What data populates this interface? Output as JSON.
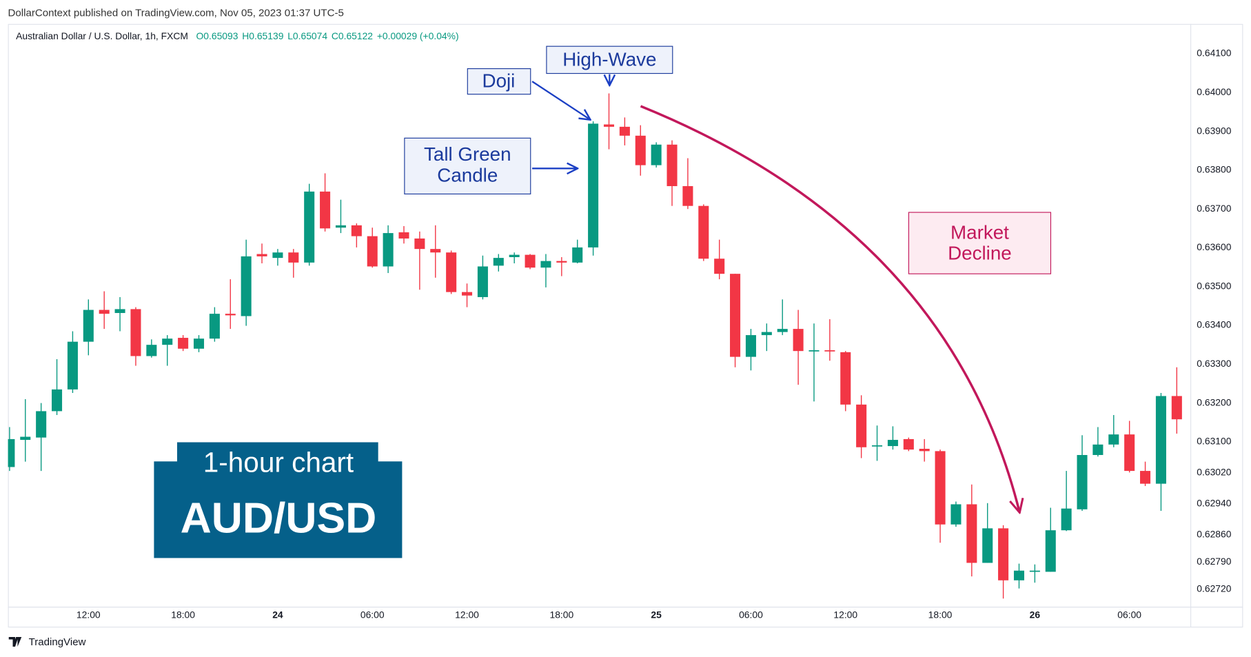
{
  "header": {
    "publisher": "DollarContext published on TradingView.com, Nov 05, 2023 01:37 UTC-5"
  },
  "footer": {
    "brand": "TradingView"
  },
  "chart_data": {
    "type": "candlestick",
    "title": "Australian Dollar / U.S. Dollar, 1h, FXCM",
    "quote": [
      "O0.65093",
      "H0.65139",
      "L0.65074",
      "C0.65122",
      "+0.00029 (+0.04%)"
    ],
    "categories": [
      null,
      null,
      null,
      null,
      null,
      "12:00",
      null,
      null,
      null,
      null,
      null,
      "18:00",
      null,
      null,
      null,
      null,
      null,
      "24",
      null,
      null,
      null,
      null,
      null,
      "06:00",
      null,
      null,
      null,
      null,
      null,
      "12:00",
      null,
      null,
      null,
      null,
      null,
      "18:00",
      null,
      null,
      null,
      null,
      null,
      "25",
      null,
      null,
      null,
      null,
      null,
      "06:00",
      null,
      null,
      null,
      null,
      null,
      "12:00",
      null,
      null,
      null,
      null,
      null,
      "18:00",
      null,
      null,
      null,
      null,
      null,
      "26",
      null,
      null,
      null,
      null,
      null,
      "06:00",
      null,
      null,
      null
    ],
    "open": [
      0.63035,
      0.63105,
      0.63111,
      0.63179,
      0.63235,
      0.63358,
      0.6344,
      0.63432,
      0.63442,
      0.63321,
      0.6335,
      0.63368,
      0.6334,
      0.63366,
      0.6343,
      0.63424,
      0.63584,
      0.63574,
      0.63588,
      0.63562,
      0.63745,
      0.63652,
      0.63658,
      0.6363,
      0.63552,
      0.6364,
      0.63624,
      0.63597,
      0.63588,
      0.63486,
      0.63473,
      0.63554,
      0.63576,
      0.63582,
      0.63549,
      0.63566,
      0.63562,
      0.63601,
      0.63918,
      0.63912,
      0.63889,
      0.63813,
      0.63866,
      0.63759,
      0.63708,
      0.63572,
      0.63533,
      0.63319,
      0.63375,
      0.63383,
      0.63391,
      0.63334,
      0.63336,
      0.63331,
      0.63196,
      0.63089,
      0.63089,
      0.63107,
      0.63082,
      0.63076,
      0.62887,
      0.62939,
      0.62788,
      0.62877,
      0.62743,
      0.62765,
      0.62765,
      0.62872,
      0.62926,
      0.63066,
      0.63093,
      0.63119,
      0.63025,
      0.62992,
      0.63218
    ],
    "high": [
      0.63138,
      0.6321,
      0.632,
      0.63313,
      0.63385,
      0.63467,
      0.63488,
      0.63473,
      0.63447,
      0.63364,
      0.63375,
      0.63375,
      0.63375,
      0.63447,
      0.63519,
      0.63621,
      0.63611,
      0.63597,
      0.63597,
      0.63765,
      0.63792,
      0.63724,
      0.63663,
      0.63652,
      0.63658,
      0.63656,
      0.63642,
      0.63658,
      0.63593,
      0.63508,
      0.6358,
      0.63584,
      0.63588,
      0.63584,
      0.63584,
      0.63576,
      0.63621,
      0.63926,
      0.63998,
      0.63936,
      0.63916,
      0.63872,
      0.63877,
      0.63831,
      0.63712,
      0.63621,
      0.63533,
      0.63391,
      0.63405,
      0.63467,
      0.6344,
      0.63405,
      0.63416,
      0.63334,
      0.6322,
      0.63142,
      0.6314,
      0.63111,
      0.63107,
      0.6308,
      0.62946,
      0.6299,
      0.62942,
      0.62885,
      0.62786,
      0.62784,
      0.6293,
      0.63025,
      0.63117,
      0.63138,
      0.63169,
      0.63154,
      0.63049,
      0.63226,
      0.63292
    ],
    "low": [
      0.63025,
      0.63049,
      0.63025,
      0.63169,
      0.63226,
      0.63323,
      0.63391,
      0.63385,
      0.63296,
      0.63317,
      0.63296,
      0.63334,
      0.63331,
      0.63358,
      0.63391,
      0.63399,
      0.6356,
      0.63554,
      0.63523,
      0.63554,
      0.63642,
      0.63638,
      0.63601,
      0.63549,
      0.63535,
      0.63611,
      0.63492,
      0.63523,
      0.63481,
      0.63447,
      0.63467,
      0.63539,
      0.6356,
      0.63545,
      0.63498,
      0.63527,
      0.6356,
      0.6358,
      0.63854,
      0.63864,
      0.63786,
      0.63807,
      0.63708,
      0.637,
      0.63566,
      0.63519,
      0.63292,
      0.63284,
      0.63334,
      0.63375,
      0.63247,
      0.63204,
      0.63309,
      0.63179,
      0.63058,
      0.63051,
      0.6308,
      0.63076,
      0.63049,
      0.6284,
      0.62881,
      0.62753,
      0.62788,
      0.62696,
      0.62722,
      0.62737,
      0.62765,
      0.6287,
      0.62922,
      0.63062,
      0.63086,
      0.63021,
      0.62986,
      0.62922,
      0.63121
    ],
    "close": [
      0.63107,
      0.63113,
      0.63179,
      0.63235,
      0.63358,
      0.6344,
      0.6343,
      0.63442,
      0.63321,
      0.6335,
      0.63366,
      0.6334,
      0.63366,
      0.6343,
      0.63426,
      0.63578,
      0.63578,
      0.63588,
      0.63562,
      0.63745,
      0.6365,
      0.63658,
      0.6363,
      0.63552,
      0.63638,
      0.63624,
      0.63597,
      0.63588,
      0.63486,
      0.63477,
      0.63552,
      0.63574,
      0.63582,
      0.63549,
      0.63566,
      0.63562,
      0.63601,
      0.6392,
      0.63912,
      0.63889,
      0.63813,
      0.63866,
      0.63759,
      0.63708,
      0.63572,
      0.63533,
      0.63319,
      0.63375,
      0.63383,
      0.63391,
      0.63334,
      0.63336,
      0.63334,
      0.63196,
      0.63086,
      0.63091,
      0.63105,
      0.6308,
      0.63076,
      0.62887,
      0.62939,
      0.62788,
      0.62877,
      0.62743,
      0.62768,
      0.62768,
      0.62872,
      0.62928,
      0.63066,
      0.63093,
      0.63119,
      0.63025,
      0.62992,
      0.63218,
      0.63158
    ],
    "up_color": "#089981",
    "down_color": "#f23645",
    "ylim": [
      0.62675,
      0.64177
    ],
    "yticks": [
      {
        "value": 0.641,
        "label": "0.64100"
      },
      {
        "value": 0.64,
        "label": "0.64000"
      },
      {
        "value": 0.639,
        "label": "0.63900"
      },
      {
        "value": 0.638,
        "label": "0.63800"
      },
      {
        "value": 0.637,
        "label": "0.63700"
      },
      {
        "value": 0.636,
        "label": "0.63600"
      },
      {
        "value": 0.635,
        "label": "0.63500"
      },
      {
        "value": 0.634,
        "label": "0.63400"
      },
      {
        "value": 0.633,
        "label": "0.63300"
      },
      {
        "value": 0.632,
        "label": "0.63200"
      },
      {
        "value": 0.631,
        "label": "0.63100"
      },
      {
        "value": 0.6302,
        "label": "0.63020"
      },
      {
        "value": 0.6294,
        "label": "0.62940"
      },
      {
        "value": 0.6286,
        "label": "0.62860"
      },
      {
        "value": 0.6279,
        "label": "0.62790"
      },
      {
        "value": 0.6272,
        "label": "0.62720"
      }
    ],
    "grid": false,
    "annotations": [
      {
        "text": [
          "High-Wave"
        ]
      },
      {
        "text": [
          "Doji"
        ]
      },
      {
        "text": [
          "Tall Green",
          "Candle"
        ]
      },
      {
        "text": [
          "Market",
          "Decline"
        ]
      }
    ],
    "chart_label": {
      "timeframe": "1-hour chart",
      "pair": "AUD/USD"
    }
  }
}
